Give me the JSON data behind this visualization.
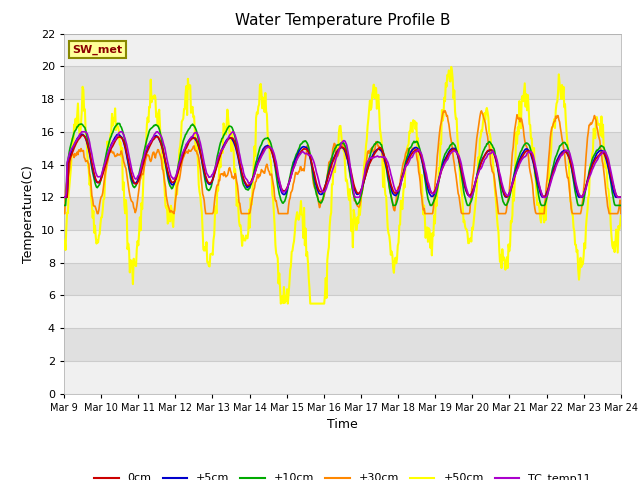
{
  "title": "Water Temperature Profile B",
  "xlabel": "Time",
  "ylabel": "Temperature(C)",
  "ylim": [
    0,
    22
  ],
  "yticks": [
    0,
    2,
    4,
    6,
    8,
    10,
    12,
    14,
    16,
    18,
    20,
    22
  ],
  "x_labels": [
    "Mar 9",
    "Mar 10",
    "Mar 11",
    "Mar 12",
    "Mar 13",
    "Mar 14",
    "Mar 15",
    "Mar 16",
    "Mar 17",
    "Mar 18",
    "Mar 19",
    "Mar 20",
    "Mar 21",
    "Mar 22",
    "Mar 23",
    "Mar 24"
  ],
  "colors": {
    "0cm": "#cc0000",
    "+5cm": "#0000cc",
    "+10cm": "#00aa00",
    "+30cm": "#ff8800",
    "+50cm": "#ffff00",
    "TC_temp11": "#aa00cc"
  },
  "legend_label": "SW_met",
  "legend_box_color": "#ffff99",
  "legend_box_edge": "#888800",
  "band_colors": [
    "#f0f0f0",
    "#e0e0e0"
  ],
  "n_points": 720,
  "seed": 10
}
